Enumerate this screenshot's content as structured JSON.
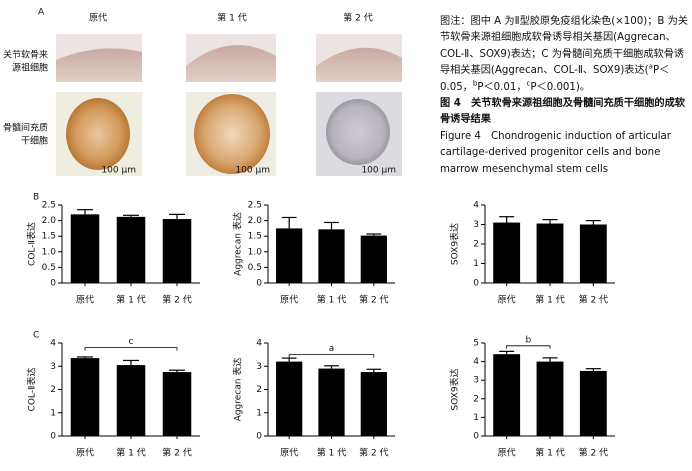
{
  "panel_a": {
    "label": "A",
    "columns": [
      "原代",
      "第 1 代",
      "第 2 代"
    ],
    "rows": [
      [
        "关节软骨来",
        "源祖细胞"
      ],
      [
        "骨髓间充质",
        "干细胞"
      ]
    ],
    "scale_bar": "100 μm"
  },
  "caption": {
    "note": [
      {
        "text": "图注：图中 A 为Ⅱ型胶原免疫组化染色(×100)；B 为关节软骨来源祖细胞成软骨诱导相关基因(Aggrecan、COL-Ⅱ、SOX9)表达；C 为骨髓间充质干细胞成软骨诱导相关基因(Aggrecan、COL-Ⅱ、SOX9)表达("
      },
      {
        "sup": "a"
      },
      {
        "text": "P＜0.05，"
      },
      {
        "sup": "b"
      },
      {
        "text": "P＜0.01，"
      },
      {
        "sup": "c"
      },
      {
        "text": "P＜0.001)。"
      }
    ],
    "title_cn": "图 4　关节软骨来源祖细胞及骨髓间充质干细胞的成软骨诱导结果",
    "title_en": "Figure 4　Chondrogenic induction of articular cartilage-derived progenitor cells and bone marrow mesenchymal stem cells"
  },
  "chart_data": [
    {
      "type": "bar",
      "panel": "B",
      "ylabel": "COL-Ⅱ表达",
      "categories": [
        "原代",
        "第 1 代",
        "第 2 代"
      ],
      "values": [
        2.2,
        2.12,
        2.05
      ],
      "errors": [
        0.15,
        0.05,
        0.15
      ],
      "color": "#000000",
      "ylim": [
        0,
        2.5
      ],
      "yticks": [
        0,
        0.5,
        {
          "value": 1,
          "label": "1.0"
        },
        1.5,
        {
          "value": 2,
          "label": "2.0"
        },
        2.5
      ]
    },
    {
      "type": "bar",
      "ylabel": "Aggrecan 表达",
      "categories": [
        "原代",
        "第 1 代",
        "第 2 代"
      ],
      "values": [
        1.75,
        1.72,
        1.52
      ],
      "errors": [
        0.35,
        0.22,
        0.05
      ],
      "color": "#000000",
      "ylim": [
        0,
        2.5
      ],
      "yticks": [
        0,
        0.5,
        {
          "value": 1,
          "label": "1.0"
        },
        1.5,
        {
          "value": 2,
          "label": "2.0"
        },
        2.5
      ]
    },
    {
      "type": "bar",
      "ylabel": "SOX9表达",
      "categories": [
        "原代",
        "第 1 代",
        "第 2 代"
      ],
      "values": [
        3.1,
        3.05,
        3.0
      ],
      "errors": [
        0.3,
        0.2,
        0.2
      ],
      "color": "#000000",
      "ylim": [
        0,
        4
      ],
      "yticks": [
        0,
        1,
        2,
        3,
        4
      ]
    },
    {
      "type": "bar",
      "panel": "C",
      "ylabel": "COL-Ⅱ表达",
      "categories": [
        "原代",
        "第 1 代",
        "第 2 代"
      ],
      "values": [
        3.35,
        3.05,
        2.75
      ],
      "errors": [
        0.05,
        0.2,
        0.08
      ],
      "color": "#000000",
      "ylim": [
        0,
        4
      ],
      "yticks": [
        0,
        1,
        2,
        3,
        4
      ],
      "bracket": {
        "from": 0,
        "to": 2,
        "y": 3.8,
        "label": "c"
      }
    },
    {
      "type": "bar",
      "ylabel": "Aggrecan 表达",
      "categories": [
        "原代",
        "第 1 代",
        "第 2 代"
      ],
      "values": [
        3.2,
        2.9,
        2.75
      ],
      "errors": [
        0.15,
        0.12,
        0.12
      ],
      "color": "#000000",
      "ylim": [
        0,
        4
      ],
      "yticks": [
        0,
        1,
        2,
        3,
        4
      ],
      "bracket": {
        "from": 0,
        "to": 2,
        "y": 3.5,
        "label": "a"
      }
    },
    {
      "type": "bar",
      "ylabel": "SOX9表达",
      "categories": [
        "原代",
        "第 1 代",
        "第 2 代"
      ],
      "values": [
        4.4,
        4.0,
        3.5
      ],
      "errors": [
        0.15,
        0.2,
        0.12
      ],
      "color": "#000000",
      "ylim": [
        0,
        5
      ],
      "yticks": [
        0,
        1,
        2,
        3,
        4,
        5
      ],
      "bracket": {
        "from": 0,
        "to": 1,
        "y": 4.85,
        "label": "b"
      }
    }
  ]
}
